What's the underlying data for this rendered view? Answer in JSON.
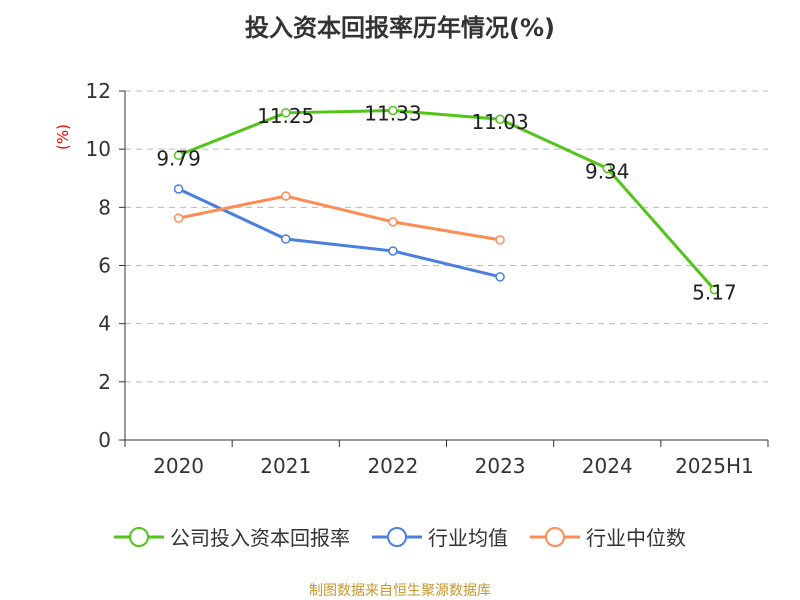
{
  "chart_data": {
    "type": "line",
    "title": "投入资本回报率历年情况(%)",
    "ylabel": "(%)",
    "xlabel": "",
    "categories": [
      "2020",
      "2021",
      "2022",
      "2023",
      "2024",
      "2025H1"
    ],
    "ylim": [
      0,
      12
    ],
    "yticks": [
      "0",
      "2",
      "4",
      "6",
      "8",
      "10",
      "12"
    ],
    "grid": true,
    "legend_position": "bottom",
    "series": [
      {
        "name": "公司投入资本回报率",
        "color": "#52c41a",
        "values": [
          9.79,
          11.25,
          11.33,
          11.03,
          9.34,
          5.17
        ],
        "labels": [
          "9.79",
          "11.25",
          "11.33",
          "11.03",
          "9.34",
          "5.17"
        ]
      },
      {
        "name": "行业均值",
        "color": "#4a7fe0",
        "values": [
          8.63,
          6.91,
          6.5,
          5.61,
          null,
          null
        ]
      },
      {
        "name": "行业中位数",
        "color": "#ff8c55",
        "values": [
          7.63,
          8.39,
          7.5,
          6.88,
          null,
          null
        ]
      }
    ]
  },
  "source": "制图数据来自恒生聚源数据库"
}
